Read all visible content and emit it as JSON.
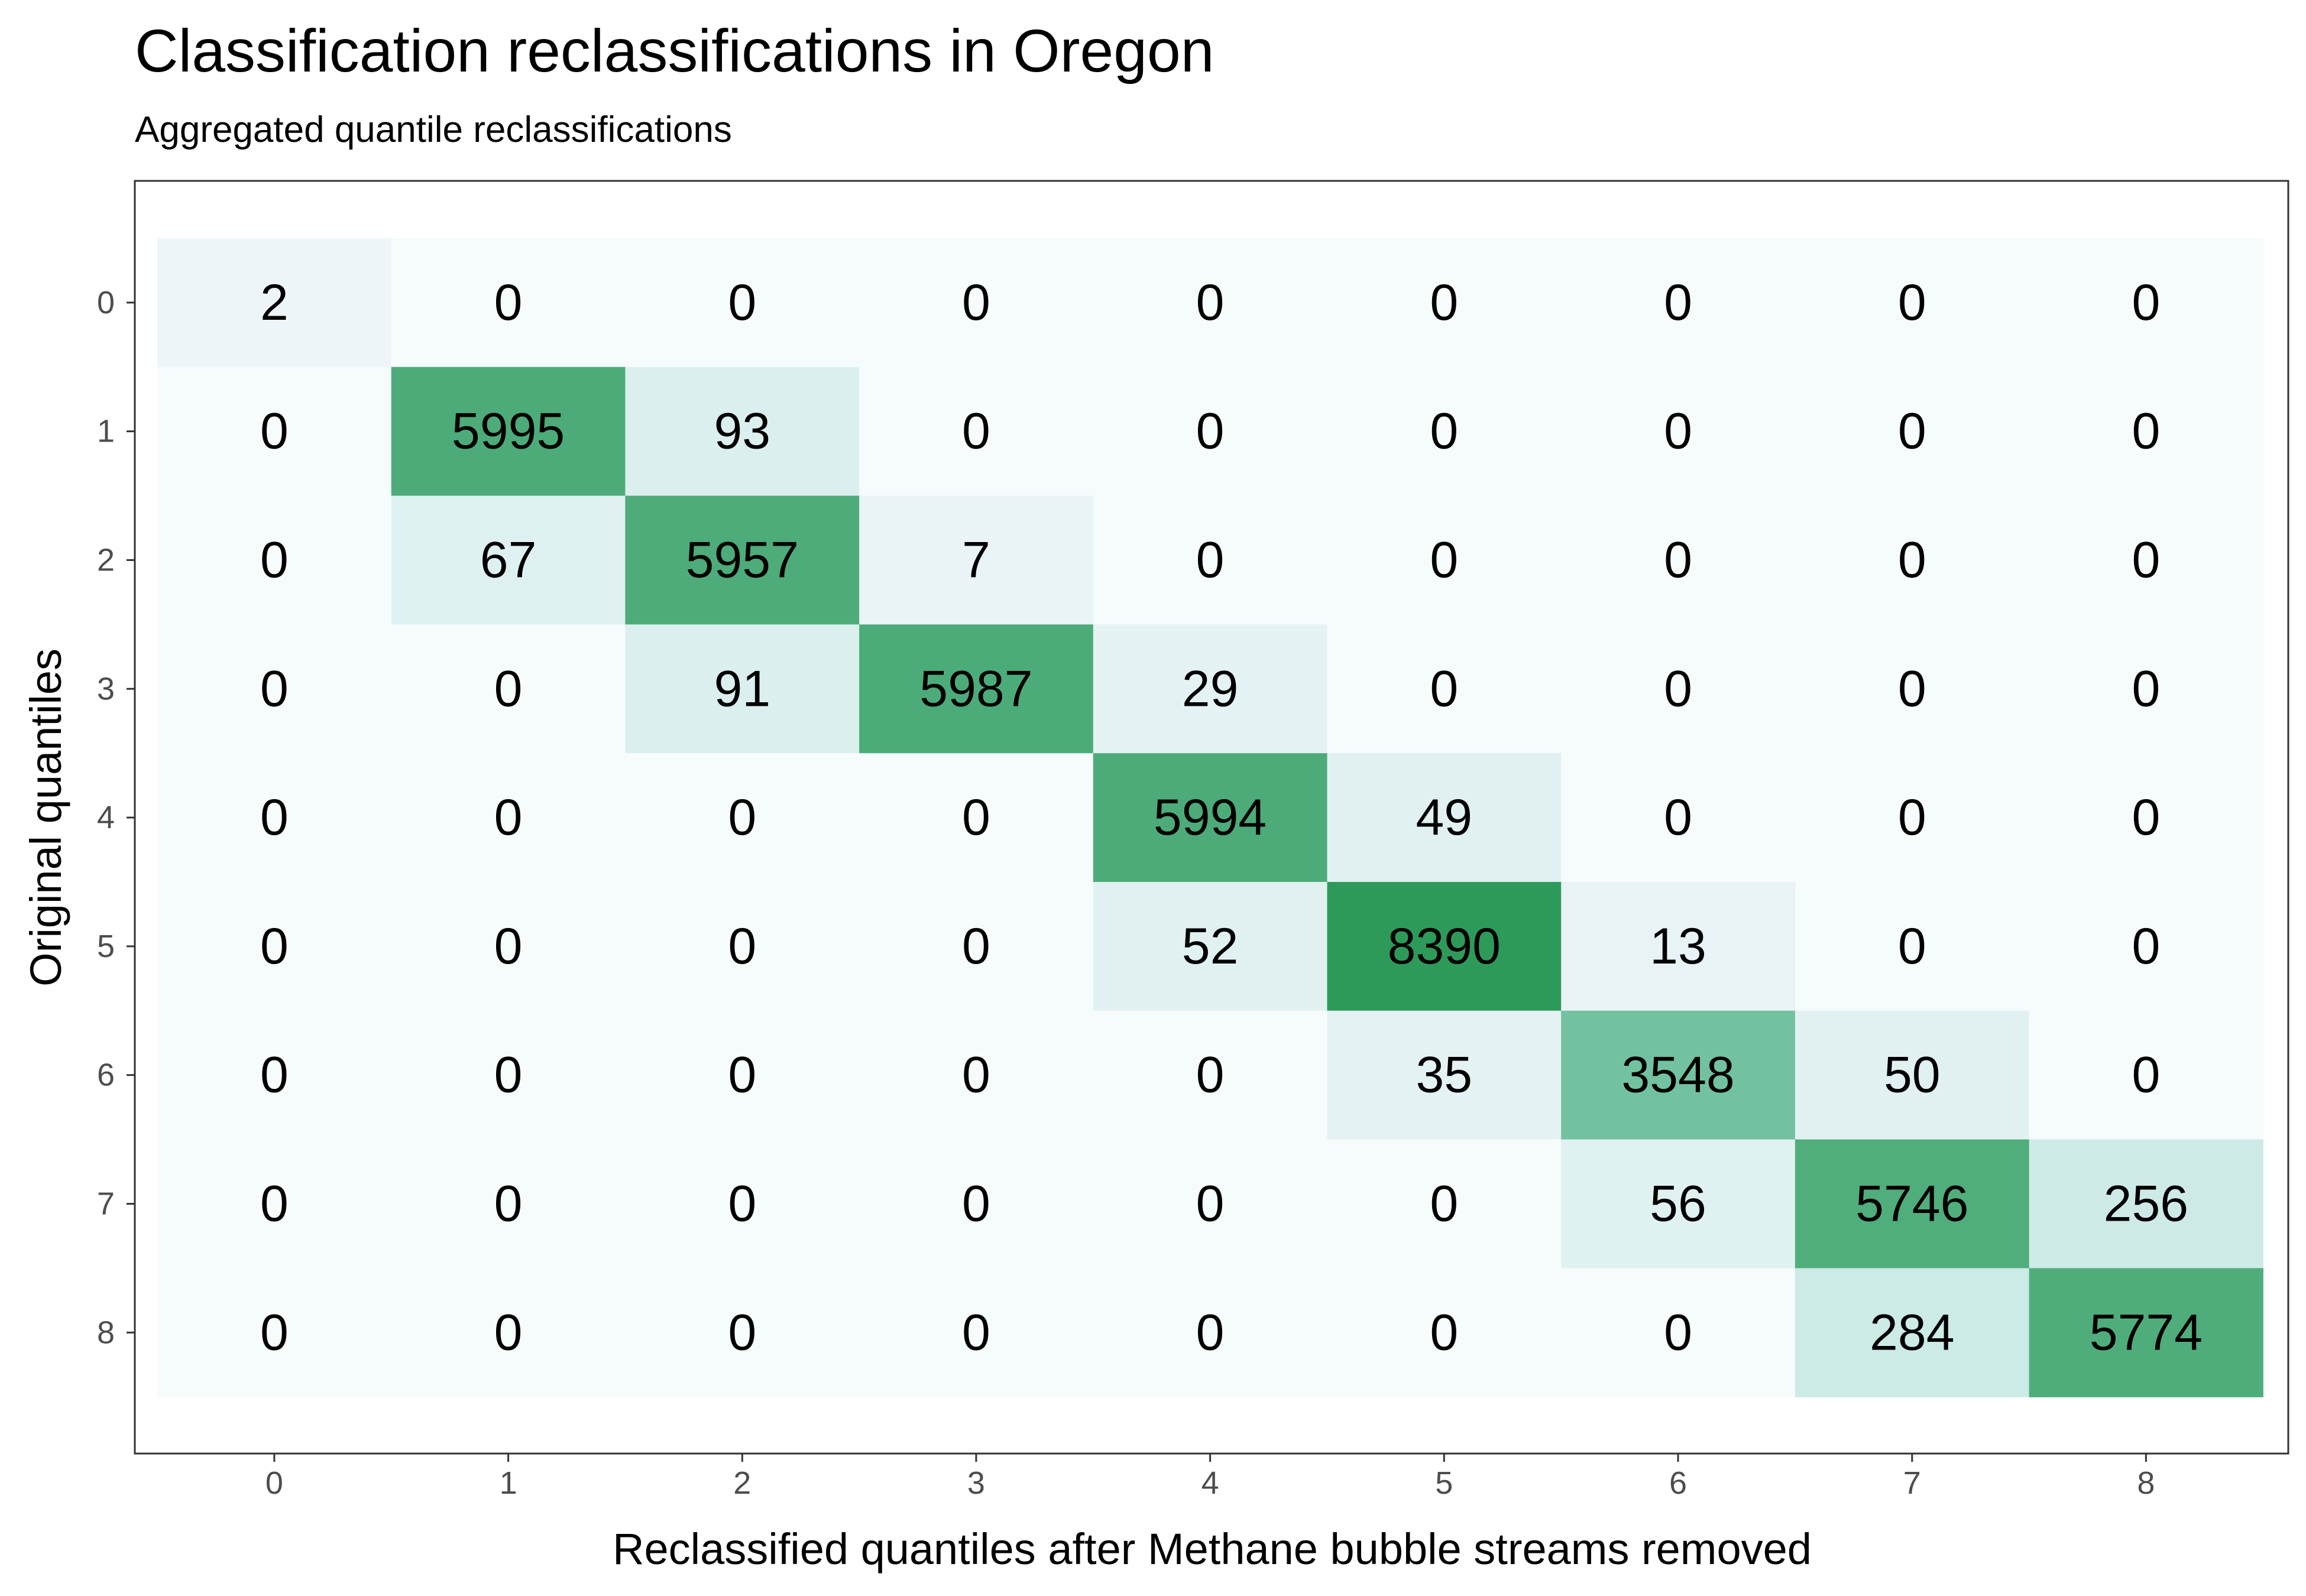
{
  "chart_data": {
    "type": "heatmap",
    "title": "Classification reclassifications in Oregon",
    "subtitle": "Aggregated quantile reclassifications",
    "xlabel": "Reclassified quantiles after Methane bubble streams removed",
    "ylabel": "Original quantiles",
    "x_categories": [
      "0",
      "1",
      "2",
      "3",
      "4",
      "5",
      "6",
      "7",
      "8"
    ],
    "y_categories": [
      "0",
      "1",
      "2",
      "3",
      "4",
      "5",
      "6",
      "7",
      "8"
    ],
    "values": [
      [
        2,
        0,
        0,
        0,
        0,
        0,
        0,
        0,
        0
      ],
      [
        0,
        5995,
        93,
        0,
        0,
        0,
        0,
        0,
        0
      ],
      [
        0,
        67,
        5957,
        7,
        0,
        0,
        0,
        0,
        0
      ],
      [
        0,
        0,
        91,
        5987,
        29,
        0,
        0,
        0,
        0
      ],
      [
        0,
        0,
        0,
        0,
        5994,
        49,
        0,
        0,
        0
      ],
      [
        0,
        0,
        0,
        0,
        52,
        8390,
        13,
        0,
        0
      ],
      [
        0,
        0,
        0,
        0,
        0,
        35,
        3548,
        50,
        0
      ],
      [
        0,
        0,
        0,
        0,
        0,
        0,
        56,
        5746,
        256
      ],
      [
        0,
        0,
        0,
        0,
        0,
        0,
        0,
        284,
        5774
      ]
    ],
    "color_scale": {
      "zero": "#f6fbfb",
      "low": "#f0f6fa",
      "mid": "#99d8c9",
      "high": "#2e9a59"
    },
    "grid": false,
    "legend": "none"
  }
}
